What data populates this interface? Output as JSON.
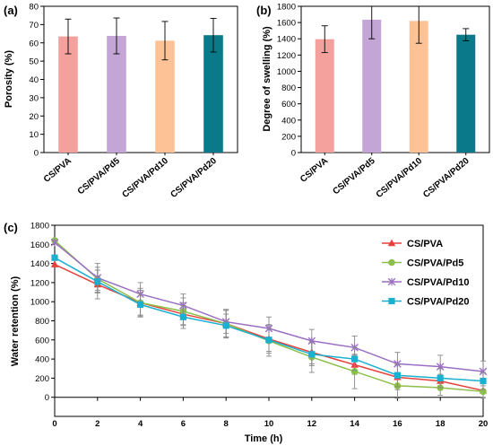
{
  "chart_data": [
    {
      "panel": "(a)",
      "type": "bar",
      "categories": [
        "CS/PVA",
        "CS/PVA/Pd5",
        "CS/PVA/Pd10",
        "CS/PVA/Pd20"
      ],
      "values": [
        63.5,
        63.8,
        61.2,
        64.2
      ],
      "errors": [
        9.5,
        9.8,
        10.5,
        9.2
      ],
      "colors": [
        "#f4a09c",
        "#c3a6d6",
        "#fdc397",
        "#0a7a8a"
      ],
      "ylabel": "Porosity (%)",
      "ylim": [
        0,
        80
      ],
      "yticks": [
        0,
        10,
        20,
        30,
        40,
        50,
        60,
        70,
        80
      ],
      "grid": false
    },
    {
      "panel": "(b)",
      "type": "bar",
      "categories": [
        "CS/PVA",
        "CS/PVA/Pd5",
        "CS/PVA/Pd10",
        "CS/PVA/Pd20"
      ],
      "values": [
        1395,
        1635,
        1620,
        1450
      ],
      "errors": [
        165,
        235,
        275,
        75
      ],
      "colors": [
        "#f4a09c",
        "#c3a6d6",
        "#fdc397",
        "#0a7a8a"
      ],
      "ylabel": "Degree of swelling (%)",
      "ylim": [
        0,
        1800
      ],
      "yticks": [
        0,
        200,
        400,
        600,
        800,
        1000,
        1200,
        1400,
        1600,
        1800
      ],
      "grid": false
    },
    {
      "panel": "(c)",
      "type": "line",
      "x": [
        0,
        2,
        4,
        6,
        8,
        10,
        12,
        14,
        16,
        18,
        20
      ],
      "xlabel": "Time (h)",
      "ylabel": "Water retention (%)",
      "xlim": [
        0,
        20
      ],
      "ylim": [
        -200,
        1800
      ],
      "xticks": [
        0,
        2,
        4,
        6,
        8,
        10,
        12,
        14,
        16,
        18,
        20
      ],
      "yticks": [
        0,
        200,
        400,
        600,
        800,
        1000,
        1200,
        1400,
        1600,
        1800
      ],
      "legend_position": "top-right",
      "grid": false,
      "series": [
        {
          "name": "CS/PVA",
          "color": "#e8413d",
          "marker": "triangle",
          "values": [
            1390,
            1180,
            990,
            870,
            770,
            610,
            470,
            340,
            210,
            170,
            70
          ],
          "errors": [
            0,
            150,
            150,
            120,
            140,
            150,
            120,
            100,
            130,
            70,
            80
          ]
        },
        {
          "name": "CS/PVA/Pd5",
          "color": "#8dbf4b",
          "marker": "circle",
          "values": [
            1640,
            1240,
            990,
            900,
            770,
            590,
            420,
            270,
            120,
            100,
            60
          ],
          "errors": [
            0,
            120,
            130,
            140,
            150,
            160,
            160,
            180,
            130,
            80,
            60
          ]
        },
        {
          "name": "CS/PVA/Pd10",
          "color": "#9b6fc4",
          "marker": "x",
          "values": [
            1620,
            1250,
            1080,
            960,
            790,
            720,
            590,
            520,
            350,
            320,
            270
          ],
          "errors": [
            0,
            150,
            120,
            120,
            120,
            120,
            120,
            120,
            120,
            120,
            110
          ]
        },
        {
          "name": "CS/PVA/Pd20",
          "color": "#1ab0d0",
          "marker": "square",
          "values": [
            1460,
            1210,
            970,
            840,
            750,
            600,
            450,
            400,
            230,
            200,
            170
          ],
          "errors": [
            0,
            120,
            120,
            120,
            120,
            120,
            120,
            120,
            120,
            100,
            90
          ]
        }
      ]
    }
  ]
}
